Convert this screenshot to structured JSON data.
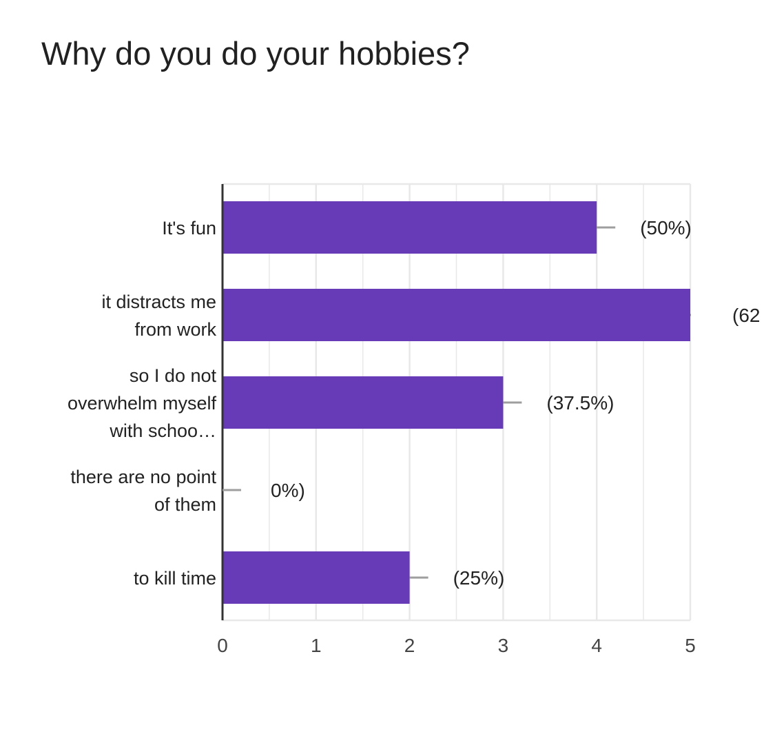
{
  "chart_data": {
    "type": "bar",
    "orientation": "horizontal",
    "title": "Why do you do your hobbies?",
    "categories": [
      [
        "It's fun"
      ],
      [
        "it distracts me",
        "from work"
      ],
      [
        "so I do not",
        "overwhelm myself",
        "with schoo…"
      ],
      [
        "there are no point",
        "of them"
      ],
      [
        "to kill time"
      ]
    ],
    "values": [
      4,
      5,
      3,
      0,
      2
    ],
    "data_labels": [
      "(50%)",
      "(62",
      "(37.5%)",
      "0%)",
      "(25%)"
    ],
    "xlim": [
      0,
      5
    ],
    "x_ticks": [
      0,
      1,
      2,
      3,
      4,
      5
    ],
    "x_tick_labels": [
      "0",
      "1",
      "2",
      "3",
      "4",
      "5"
    ],
    "grid": true,
    "bar_color": "#673ab7",
    "grid_color": "#e8e8e8",
    "axis_color": "#333333",
    "connector_color": "#9e9e9e"
  }
}
